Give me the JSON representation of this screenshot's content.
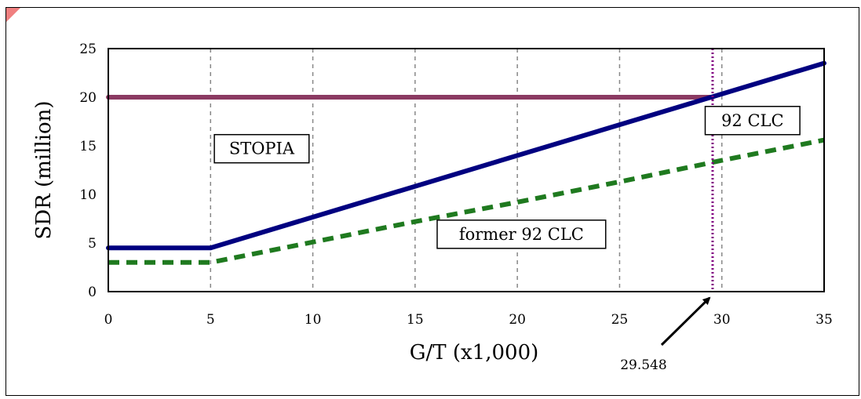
{
  "chart_data": {
    "type": "line",
    "xlabel": "G/T (x1,000)",
    "ylabel": "SDR (million)",
    "xlim": [
      0,
      35
    ],
    "ylim": [
      0,
      25
    ],
    "x_ticks": [
      0,
      5,
      10,
      15,
      20,
      25,
      30,
      35
    ],
    "y_ticks": [
      0,
      5,
      10,
      15,
      20,
      25
    ],
    "grid": "vertical dashed lines",
    "series": [
      {
        "color": "#8b3a62",
        "style": "solid",
        "x": [
          0,
          29.548
        ],
        "y": [
          20,
          20
        ]
      },
      {
        "color": "#000080",
        "style": "solid",
        "x": [
          0,
          5,
          35
        ],
        "y": [
          4.5,
          4.5,
          23.5
        ]
      },
      {
        "color": "#1f7a1f",
        "style": "dashed",
        "x": [
          0,
          5,
          10,
          15,
          20,
          25,
          30,
          35
        ],
        "y": [
          3.0,
          3.0,
          5.1,
          7.2,
          9.2,
          11.3,
          13.5,
          15.6
        ]
      }
    ],
    "reference_line": {
      "x": 29.548,
      "color": "#800080",
      "style": "dotted"
    },
    "annotations": [
      {
        "text": "STOPIA",
        "x": 7.5,
        "y": 14.7
      },
      {
        "text": "92 CLC",
        "x": 31.5,
        "y": 17.6
      },
      {
        "text": "former 92 CLC",
        "x": 20.2,
        "y": 5.9
      },
      {
        "text": "29.548",
        "arrow_to_x": 29.548
      }
    ]
  }
}
